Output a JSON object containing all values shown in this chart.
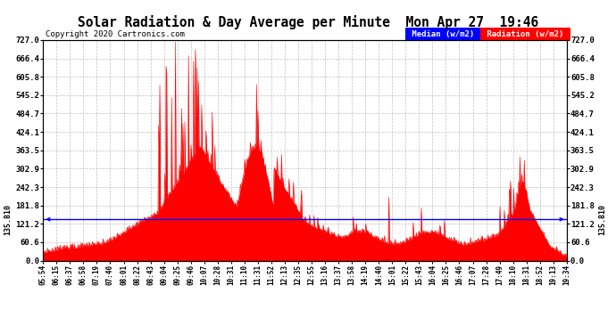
{
  "title": "Solar Radiation & Day Average per Minute  Mon Apr 27  19:46",
  "copyright": "Copyright 2020 Cartronics.com",
  "median_value": 135.81,
  "y_max": 727.0,
  "y_min": 0.0,
  "yticks": [
    0.0,
    60.6,
    121.2,
    181.8,
    242.3,
    302.9,
    363.5,
    424.1,
    484.7,
    545.2,
    605.8,
    666.4,
    727.0
  ],
  "background_color": "#ffffff",
  "fill_color": "#ff0000",
  "median_color": "#0000ff",
  "grid_color": "#b0b0b0",
  "title_color": "#000000",
  "legend_median_bg": "#0000ff",
  "legend_radiation_bg": "#ff0000",
  "legend_text_color": "#ffffff",
  "n_points": 840,
  "x_tick_labels": [
    "05:54",
    "06:15",
    "06:37",
    "06:58",
    "07:19",
    "07:40",
    "08:01",
    "08:22",
    "08:43",
    "09:04",
    "09:25",
    "09:46",
    "10:07",
    "10:28",
    "10:31",
    "11:10",
    "11:31",
    "11:52",
    "12:13",
    "12:35",
    "12:55",
    "13:16",
    "13:37",
    "13:58",
    "14:19",
    "14:40",
    "15:01",
    "15:22",
    "15:43",
    "16:04",
    "16:25",
    "16:46",
    "17:07",
    "17:28",
    "17:49",
    "18:10",
    "18:31",
    "18:52",
    "19:13",
    "19:34"
  ]
}
